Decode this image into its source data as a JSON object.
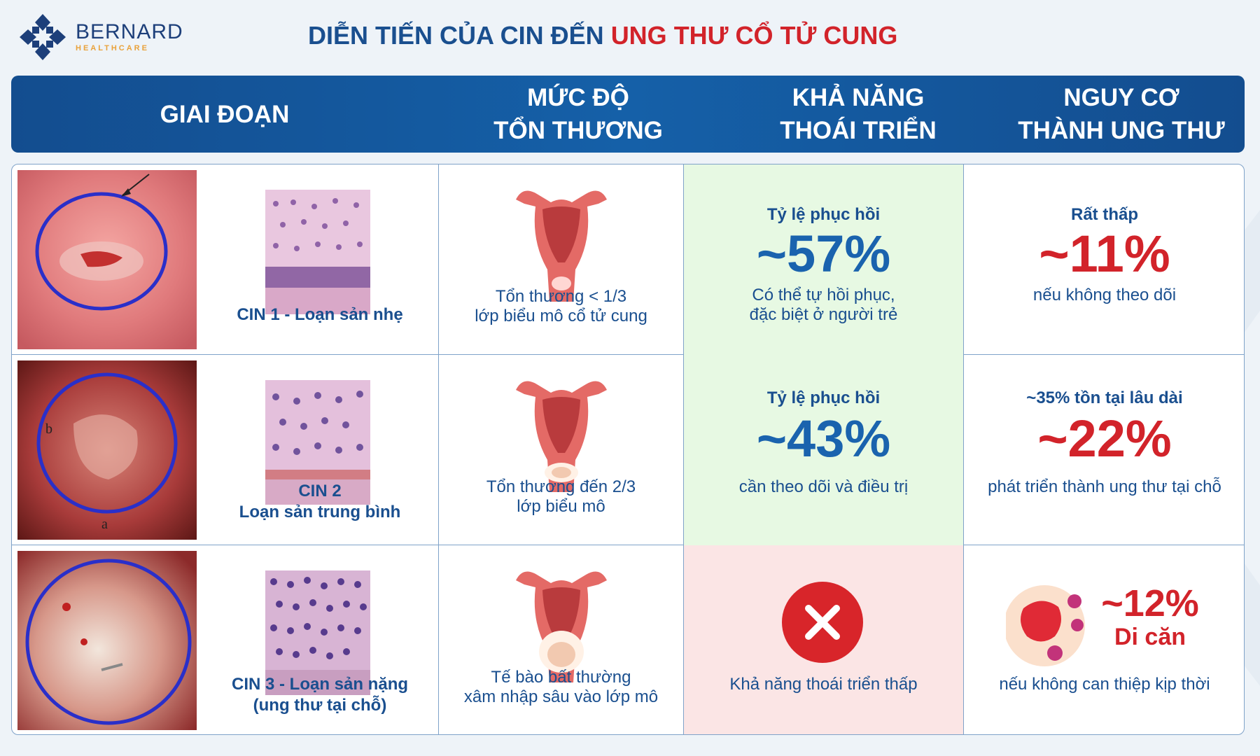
{
  "brand": {
    "name": "BERNARD",
    "sub": "HEALTHCARE",
    "accent": "#e9a23b",
    "logo": "bernard-cross-logo"
  },
  "title": {
    "part1": "DIỄN TIẾN CỦA CIN ĐẾN ",
    "part2": "UNG THƯ CỔ TỬ CUNG"
  },
  "colors": {
    "primary": "#1a4f8f",
    "danger": "#d2232a",
    "header_bg": "#134d8f",
    "green_bg": "#e7f9e3",
    "pink_bg": "#fbe5e5"
  },
  "headers": {
    "stage": "GIAI ĐOẠN",
    "severity_1": "MỨC ĐỘ",
    "severity_2": "TỔN THƯƠNG",
    "regress_1": "KHẢ NĂNG",
    "regress_2": "THOÁI TRIỂN",
    "risk_1": "NGUY CƠ",
    "risk_2": "THÀNH UNG THƯ"
  },
  "rows": [
    {
      "stage_line1": "CIN 1 - Loạn sản nhẹ",
      "stage_line2": "",
      "colpo_letters": [],
      "lesion_1": "Tổn thương < 1/3",
      "lesion_2": "lớp biểu mô cổ tử cung",
      "regress_head": "Tỷ lệ phục hồi",
      "regress_pct": "~57%",
      "regress_note_1": "Có thể tự hồi phục,",
      "regress_note_2": "đặc biệt ở người trẻ",
      "risk_head": "Rất thấp",
      "risk_pct": "~11%",
      "risk_note": "nếu không theo dõi"
    },
    {
      "stage_line1": "CIN 2",
      "stage_line2": "Loạn sản trung bình",
      "colpo_letters": [
        "b",
        "a"
      ],
      "lesion_1": "Tổn thương đến 2/3",
      "lesion_2": "lớp biểu mô",
      "regress_head": "Tỷ lệ phục hồi",
      "regress_pct": "~43%",
      "regress_note_1": "cần theo dõi và điều trị",
      "risk_head": "~35% tồn tại lâu dài",
      "risk_pct": "~22%",
      "risk_note": "phát triển thành ung thư tại chỗ"
    },
    {
      "stage_line1": "CIN 3 - Loạn sản nặng",
      "stage_line2": "(ung thư tại chỗ)",
      "lesion_1": "Tế bào bất thường",
      "lesion_2": "xâm nhập sâu vào lớp mô",
      "regress_icon": "x-circle-icon",
      "regress_note_1": "Khả năng thoái triển thấp",
      "risk_pct": "~12%",
      "risk_label": "Di căn",
      "risk_icon": "metastasis-cells-icon",
      "risk_note": "nếu không can thiệp kịp thời"
    }
  ]
}
